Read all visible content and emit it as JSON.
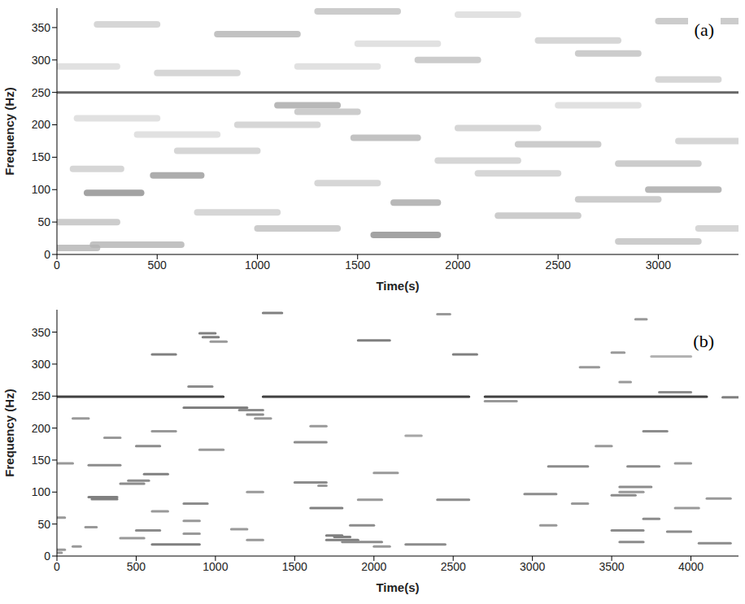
{
  "chart_data": [
    {
      "type": "spectrogram",
      "label": "(a)",
      "x_label": "Time(s)",
      "y_label": "Frequency (Hz)",
      "xlim": [
        0,
        3400
      ],
      "xticks": [
        0,
        500,
        1000,
        1500,
        2000,
        2500,
        3000
      ],
      "ylim": [
        0,
        380
      ],
      "yticks": [
        0,
        50,
        100,
        150,
        200,
        250,
        300,
        350
      ],
      "color": "#000000",
      "streaks": [
        {
          "t0": 0,
          "t1": 3400,
          "f": 250,
          "level": 0.75
        },
        {
          "t0": 150,
          "t1": 420,
          "f": 95,
          "level": 0.45
        },
        {
          "t0": 480,
          "t1": 720,
          "f": 122,
          "level": 0.4
        },
        {
          "t0": 80,
          "t1": 320,
          "f": 132,
          "level": 0.2
        },
        {
          "t0": 1580,
          "t1": 1900,
          "f": 30,
          "level": 0.45
        },
        {
          "t0": 1680,
          "t1": 1900,
          "f": 80,
          "level": 0.35
        },
        {
          "t0": 2950,
          "t1": 3300,
          "f": 100,
          "level": 0.35
        },
        {
          "t0": 180,
          "t1": 620,
          "f": 15,
          "level": 0.3
        },
        {
          "t0": 0,
          "t1": 300,
          "f": 50,
          "level": 0.25
        },
        {
          "t0": 1100,
          "t1": 1400,
          "f": 230,
          "level": 0.35
        },
        {
          "t0": 1200,
          "t1": 1500,
          "f": 220,
          "level": 0.25
        },
        {
          "t0": 1480,
          "t1": 1800,
          "f": 180,
          "level": 0.3
        },
        {
          "t0": 1800,
          "t1": 2100,
          "f": 300,
          "level": 0.25
        },
        {
          "t0": 800,
          "t1": 1200,
          "f": 340,
          "level": 0.3
        },
        {
          "t0": 1300,
          "t1": 1700,
          "f": 375,
          "level": 0.25
        },
        {
          "t0": 2600,
          "t1": 2900,
          "f": 310,
          "level": 0.25
        },
        {
          "t0": 2300,
          "t1": 2700,
          "f": 170,
          "level": 0.25
        },
        {
          "t0": 2800,
          "t1": 3200,
          "f": 140,
          "level": 0.25
        },
        {
          "t0": 900,
          "t1": 1300,
          "f": 200,
          "level": 0.2
        },
        {
          "t0": 2200,
          "t1": 2600,
          "f": 60,
          "level": 0.25
        },
        {
          "t0": 500,
          "t1": 900,
          "f": 280,
          "level": 0.2
        },
        {
          "t0": 2400,
          "t1": 2800,
          "f": 330,
          "level": 0.2
        },
        {
          "t0": 3000,
          "t1": 3400,
          "f": 360,
          "level": 0.25
        },
        {
          "t0": 1000,
          "t1": 1400,
          "f": 40,
          "level": 0.25
        },
        {
          "t0": 600,
          "t1": 1000,
          "f": 160,
          "level": 0.2
        },
        {
          "t0": 3000,
          "t1": 3300,
          "f": 270,
          "level": 0.2
        },
        {
          "t0": 2800,
          "t1": 3200,
          "f": 20,
          "level": 0.25
        },
        {
          "t0": 1300,
          "t1": 1600,
          "f": 110,
          "level": 0.2
        },
        {
          "t0": 200,
          "t1": 500,
          "f": 355,
          "level": 0.2
        },
        {
          "t0": 2000,
          "t1": 2400,
          "f": 195,
          "level": 0.2
        },
        {
          "t0": 2600,
          "t1": 3000,
          "f": 85,
          "level": 0.25
        },
        {
          "t0": 0,
          "t1": 200,
          "f": 10,
          "level": 0.3
        },
        {
          "t0": 700,
          "t1": 1100,
          "f": 65,
          "level": 0.2
        },
        {
          "t0": 1900,
          "t1": 2300,
          "f": 145,
          "level": 0.2
        },
        {
          "t0": 100,
          "t1": 500,
          "f": 210,
          "level": 0.15
        },
        {
          "t0": 3100,
          "t1": 3400,
          "f": 175,
          "level": 0.2
        },
        {
          "t0": 1500,
          "t1": 1900,
          "f": 325,
          "level": 0.15
        },
        {
          "t0": 2100,
          "t1": 2500,
          "f": 125,
          "level": 0.2
        },
        {
          "t0": 400,
          "t1": 800,
          "f": 185,
          "level": 0.15
        },
        {
          "t0": 2500,
          "t1": 2900,
          "f": 230,
          "level": 0.15
        },
        {
          "t0": 0,
          "t1": 300,
          "f": 290,
          "level": 0.15
        },
        {
          "t0": 1200,
          "t1": 1600,
          "f": 290,
          "level": 0.15
        },
        {
          "t0": 3200,
          "t1": 3400,
          "f": 40,
          "level": 0.2
        },
        {
          "t0": 2000,
          "t1": 2300,
          "f": 370,
          "level": 0.15
        }
      ]
    },
    {
      "type": "spectrogram",
      "label": "(b)",
      "x_label": "Time(s)",
      "y_label": "Frequency (Hz)",
      "xlim": [
        0,
        4300
      ],
      "xticks": [
        0,
        500,
        1000,
        1500,
        2000,
        2500,
        3000,
        3500,
        4000
      ],
      "ylim": [
        0,
        385
      ],
      "yticks": [
        0,
        50,
        100,
        150,
        200,
        250,
        300,
        350
      ],
      "color": "#000000",
      "streaks": [
        {
          "t0": 0,
          "t1": 1050,
          "f": 249,
          "level": 0.75
        },
        {
          "t0": 1300,
          "t1": 2600,
          "f": 249,
          "level": 0.75
        },
        {
          "t0": 2700,
          "t1": 4100,
          "f": 249,
          "level": 0.75
        },
        {
          "t0": 1300,
          "t1": 1420,
          "f": 380,
          "level": 0.5
        },
        {
          "t0": 2400,
          "t1": 2480,
          "f": 378,
          "level": 0.4
        },
        {
          "t0": 3650,
          "t1": 3720,
          "f": 370,
          "level": 0.4
        },
        {
          "t0": 900,
          "t1": 1000,
          "f": 348,
          "level": 0.5
        },
        {
          "t0": 920,
          "t1": 1020,
          "f": 342,
          "level": 0.5
        },
        {
          "t0": 970,
          "t1": 1070,
          "f": 335,
          "level": 0.4
        },
        {
          "t0": 1900,
          "t1": 2100,
          "f": 337,
          "level": 0.5
        },
        {
          "t0": 600,
          "t1": 750,
          "f": 315,
          "level": 0.5
        },
        {
          "t0": 2500,
          "t1": 2650,
          "f": 315,
          "level": 0.5
        },
        {
          "t0": 3500,
          "t1": 3580,
          "f": 318,
          "level": 0.4
        },
        {
          "t0": 3750,
          "t1": 4000,
          "f": 312,
          "level": 0.3
        },
        {
          "t0": 3300,
          "t1": 3420,
          "f": 295,
          "level": 0.4
        },
        {
          "t0": 3550,
          "t1": 3620,
          "f": 272,
          "level": 0.4
        },
        {
          "t0": 830,
          "t1": 980,
          "f": 265,
          "level": 0.45
        },
        {
          "t0": 3800,
          "t1": 4000,
          "f": 256,
          "level": 0.45
        },
        {
          "t0": 4200,
          "t1": 4300,
          "f": 248,
          "level": 0.5
        },
        {
          "t0": 2700,
          "t1": 2900,
          "f": 242,
          "level": 0.4
        },
        {
          "t0": 800,
          "t1": 1200,
          "f": 232,
          "level": 0.5
        },
        {
          "t0": 1150,
          "t1": 1300,
          "f": 228,
          "level": 0.45
        },
        {
          "t0": 1200,
          "t1": 1300,
          "f": 221,
          "level": 0.45
        },
        {
          "t0": 1250,
          "t1": 1350,
          "f": 215,
          "level": 0.4
        },
        {
          "t0": 100,
          "t1": 200,
          "f": 215,
          "level": 0.4
        },
        {
          "t0": 1600,
          "t1": 1700,
          "f": 203,
          "level": 0.4
        },
        {
          "t0": 600,
          "t1": 750,
          "f": 195,
          "level": 0.4
        },
        {
          "t0": 3700,
          "t1": 3850,
          "f": 195,
          "level": 0.45
        },
        {
          "t0": 2200,
          "t1": 2300,
          "f": 188,
          "level": 0.35
        },
        {
          "t0": 300,
          "t1": 400,
          "f": 185,
          "level": 0.4
        },
        {
          "t0": 1500,
          "t1": 1700,
          "f": 178,
          "level": 0.45
        },
        {
          "t0": 500,
          "t1": 650,
          "f": 172,
          "level": 0.45
        },
        {
          "t0": 3400,
          "t1": 3500,
          "f": 172,
          "level": 0.4
        },
        {
          "t0": 900,
          "t1": 1050,
          "f": 166,
          "level": 0.4
        },
        {
          "t0": 0,
          "t1": 100,
          "f": 145,
          "level": 0.4
        },
        {
          "t0": 200,
          "t1": 400,
          "f": 142,
          "level": 0.45
        },
        {
          "t0": 3100,
          "t1": 3350,
          "f": 140,
          "level": 0.45
        },
        {
          "t0": 3600,
          "t1": 3800,
          "f": 140,
          "level": 0.45
        },
        {
          "t0": 3900,
          "t1": 4000,
          "f": 145,
          "level": 0.4
        },
        {
          "t0": 2000,
          "t1": 2150,
          "f": 130,
          "level": 0.4
        },
        {
          "t0": 550,
          "t1": 700,
          "f": 128,
          "level": 0.5
        },
        {
          "t0": 450,
          "t1": 580,
          "f": 118,
          "level": 0.45
        },
        {
          "t0": 400,
          "t1": 550,
          "f": 113,
          "level": 0.45
        },
        {
          "t0": 1500,
          "t1": 1700,
          "f": 115,
          "level": 0.45
        },
        {
          "t0": 1650,
          "t1": 1700,
          "f": 110,
          "level": 0.4
        },
        {
          "t0": 3550,
          "t1": 3750,
          "f": 108,
          "level": 0.45
        },
        {
          "t0": 3550,
          "t1": 3700,
          "f": 100,
          "level": 0.4
        },
        {
          "t0": 3500,
          "t1": 3650,
          "f": 95,
          "level": 0.45
        },
        {
          "t0": 1200,
          "t1": 1300,
          "f": 100,
          "level": 0.4
        },
        {
          "t0": 2950,
          "t1": 3150,
          "f": 97,
          "level": 0.45
        },
        {
          "t0": 200,
          "t1": 380,
          "f": 92,
          "level": 0.5
        },
        {
          "t0": 220,
          "t1": 380,
          "f": 89,
          "level": 0.5
        },
        {
          "t0": 1900,
          "t1": 2050,
          "f": 88,
          "level": 0.4
        },
        {
          "t0": 2400,
          "t1": 2600,
          "f": 88,
          "level": 0.45
        },
        {
          "t0": 4100,
          "t1": 4250,
          "f": 90,
          "level": 0.4
        },
        {
          "t0": 800,
          "t1": 950,
          "f": 82,
          "level": 0.45
        },
        {
          "t0": 3250,
          "t1": 3350,
          "f": 82,
          "level": 0.4
        },
        {
          "t0": 1600,
          "t1": 1800,
          "f": 75,
          "level": 0.5
        },
        {
          "t0": 3900,
          "t1": 4050,
          "f": 75,
          "level": 0.4
        },
        {
          "t0": 600,
          "t1": 700,
          "f": 70,
          "level": 0.4
        },
        {
          "t0": 0,
          "t1": 50,
          "f": 60,
          "level": 0.4
        },
        {
          "t0": 3700,
          "t1": 3800,
          "f": 58,
          "level": 0.45
        },
        {
          "t0": 800,
          "t1": 900,
          "f": 55,
          "level": 0.4
        },
        {
          "t0": 1850,
          "t1": 2000,
          "f": 48,
          "level": 0.45
        },
        {
          "t0": 3050,
          "t1": 3150,
          "f": 48,
          "level": 0.4
        },
        {
          "t0": 180,
          "t1": 250,
          "f": 45,
          "level": 0.4
        },
        {
          "t0": 1100,
          "t1": 1200,
          "f": 42,
          "level": 0.4
        },
        {
          "t0": 500,
          "t1": 650,
          "f": 40,
          "level": 0.45
        },
        {
          "t0": 3500,
          "t1": 3700,
          "f": 40,
          "level": 0.45
        },
        {
          "t0": 3850,
          "t1": 4000,
          "f": 38,
          "level": 0.45
        },
        {
          "t0": 800,
          "t1": 900,
          "f": 35,
          "level": 0.4
        },
        {
          "t0": 1700,
          "t1": 1800,
          "f": 32,
          "level": 0.5
        },
        {
          "t0": 1750,
          "t1": 1850,
          "f": 30,
          "level": 0.5
        },
        {
          "t0": 400,
          "t1": 550,
          "f": 28,
          "level": 0.4
        },
        {
          "t0": 1200,
          "t1": 1300,
          "f": 25,
          "level": 0.4
        },
        {
          "t0": 1700,
          "t1": 1900,
          "f": 25,
          "level": 0.5
        },
        {
          "t0": 1800,
          "t1": 2050,
          "f": 22,
          "level": 0.45
        },
        {
          "t0": 3550,
          "t1": 3700,
          "f": 22,
          "level": 0.45
        },
        {
          "t0": 4050,
          "t1": 4250,
          "f": 20,
          "level": 0.45
        },
        {
          "t0": 600,
          "t1": 900,
          "f": 18,
          "level": 0.5
        },
        {
          "t0": 2200,
          "t1": 2450,
          "f": 18,
          "level": 0.45
        },
        {
          "t0": 2000,
          "t1": 2100,
          "f": 15,
          "level": 0.4
        },
        {
          "t0": 100,
          "t1": 150,
          "f": 15,
          "level": 0.4
        },
        {
          "t0": 0,
          "t1": 50,
          "f": 10,
          "level": 0.4
        },
        {
          "t0": 0,
          "t1": 30,
          "f": 5,
          "level": 0.4
        }
      ]
    }
  ]
}
